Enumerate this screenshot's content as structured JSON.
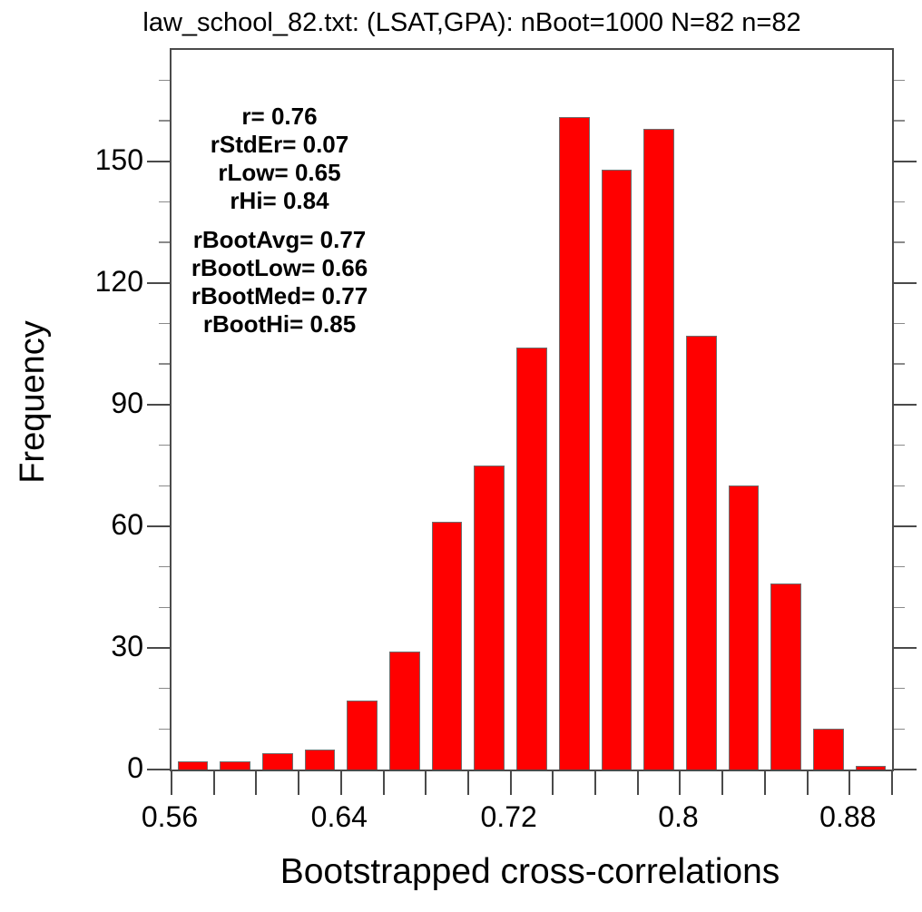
{
  "figure": {
    "title": "law_school_82.txt: (LSAT,GPA): nBoot=1000 N=82 n=82"
  },
  "chart_data": {
    "type": "bar",
    "subtype": "histogram",
    "title": "law_school_82.txt: (LSAT,GPA): nBoot=1000 N=82 n=82",
    "xlabel": "Bootstrapped cross-correlations",
    "ylabel": "Frequency",
    "bin_edges": [
      0.56,
      0.58,
      0.6,
      0.62,
      0.64,
      0.66,
      0.68,
      0.7,
      0.72,
      0.74,
      0.76,
      0.78,
      0.8,
      0.82,
      0.84,
      0.86,
      0.88,
      0.9
    ],
    "values": [
      2,
      2,
      4,
      5,
      17,
      29,
      61,
      75,
      104,
      161,
      148,
      158,
      107,
      70,
      46,
      10,
      1
    ],
    "xlim": [
      0.56,
      0.9
    ],
    "ylim": [
      0,
      177.5
    ],
    "x_labeled_ticks": [
      {
        "value": 0.56,
        "label": "0.56"
      },
      {
        "value": 0.64,
        "label": "0.64"
      },
      {
        "value": 0.72,
        "label": "0.72"
      },
      {
        "value": 0.8,
        "label": "0.8"
      },
      {
        "value": 0.88,
        "label": "0.88"
      }
    ],
    "x_minor_tick_step": 0.02,
    "y_labeled_ticks": [
      {
        "value": 0,
        "label": "0"
      },
      {
        "value": 30,
        "label": "30"
      },
      {
        "value": 60,
        "label": "60"
      },
      {
        "value": 90,
        "label": "90"
      },
      {
        "value": 120,
        "label": "120"
      },
      {
        "value": 150,
        "label": "150"
      }
    ],
    "y_minor_tick_step": 10,
    "grid": false,
    "colors": {
      "bar_fill": "#ff0000",
      "bar_outline": "#6e6e6e",
      "axis": "#4a4a4a",
      "text": "#000000",
      "background": "#ffffff"
    },
    "annotations": {
      "location": "upper-left",
      "group1": [
        "r= 0.76",
        "rStdEr= 0.07",
        "rLow= 0.65",
        "rHi= 0.84"
      ],
      "group2": [
        "rBootAvg= 0.77",
        "rBootLow= 0.66",
        "rBootMed= 0.77",
        "rBootHi= 0.85"
      ]
    }
  }
}
